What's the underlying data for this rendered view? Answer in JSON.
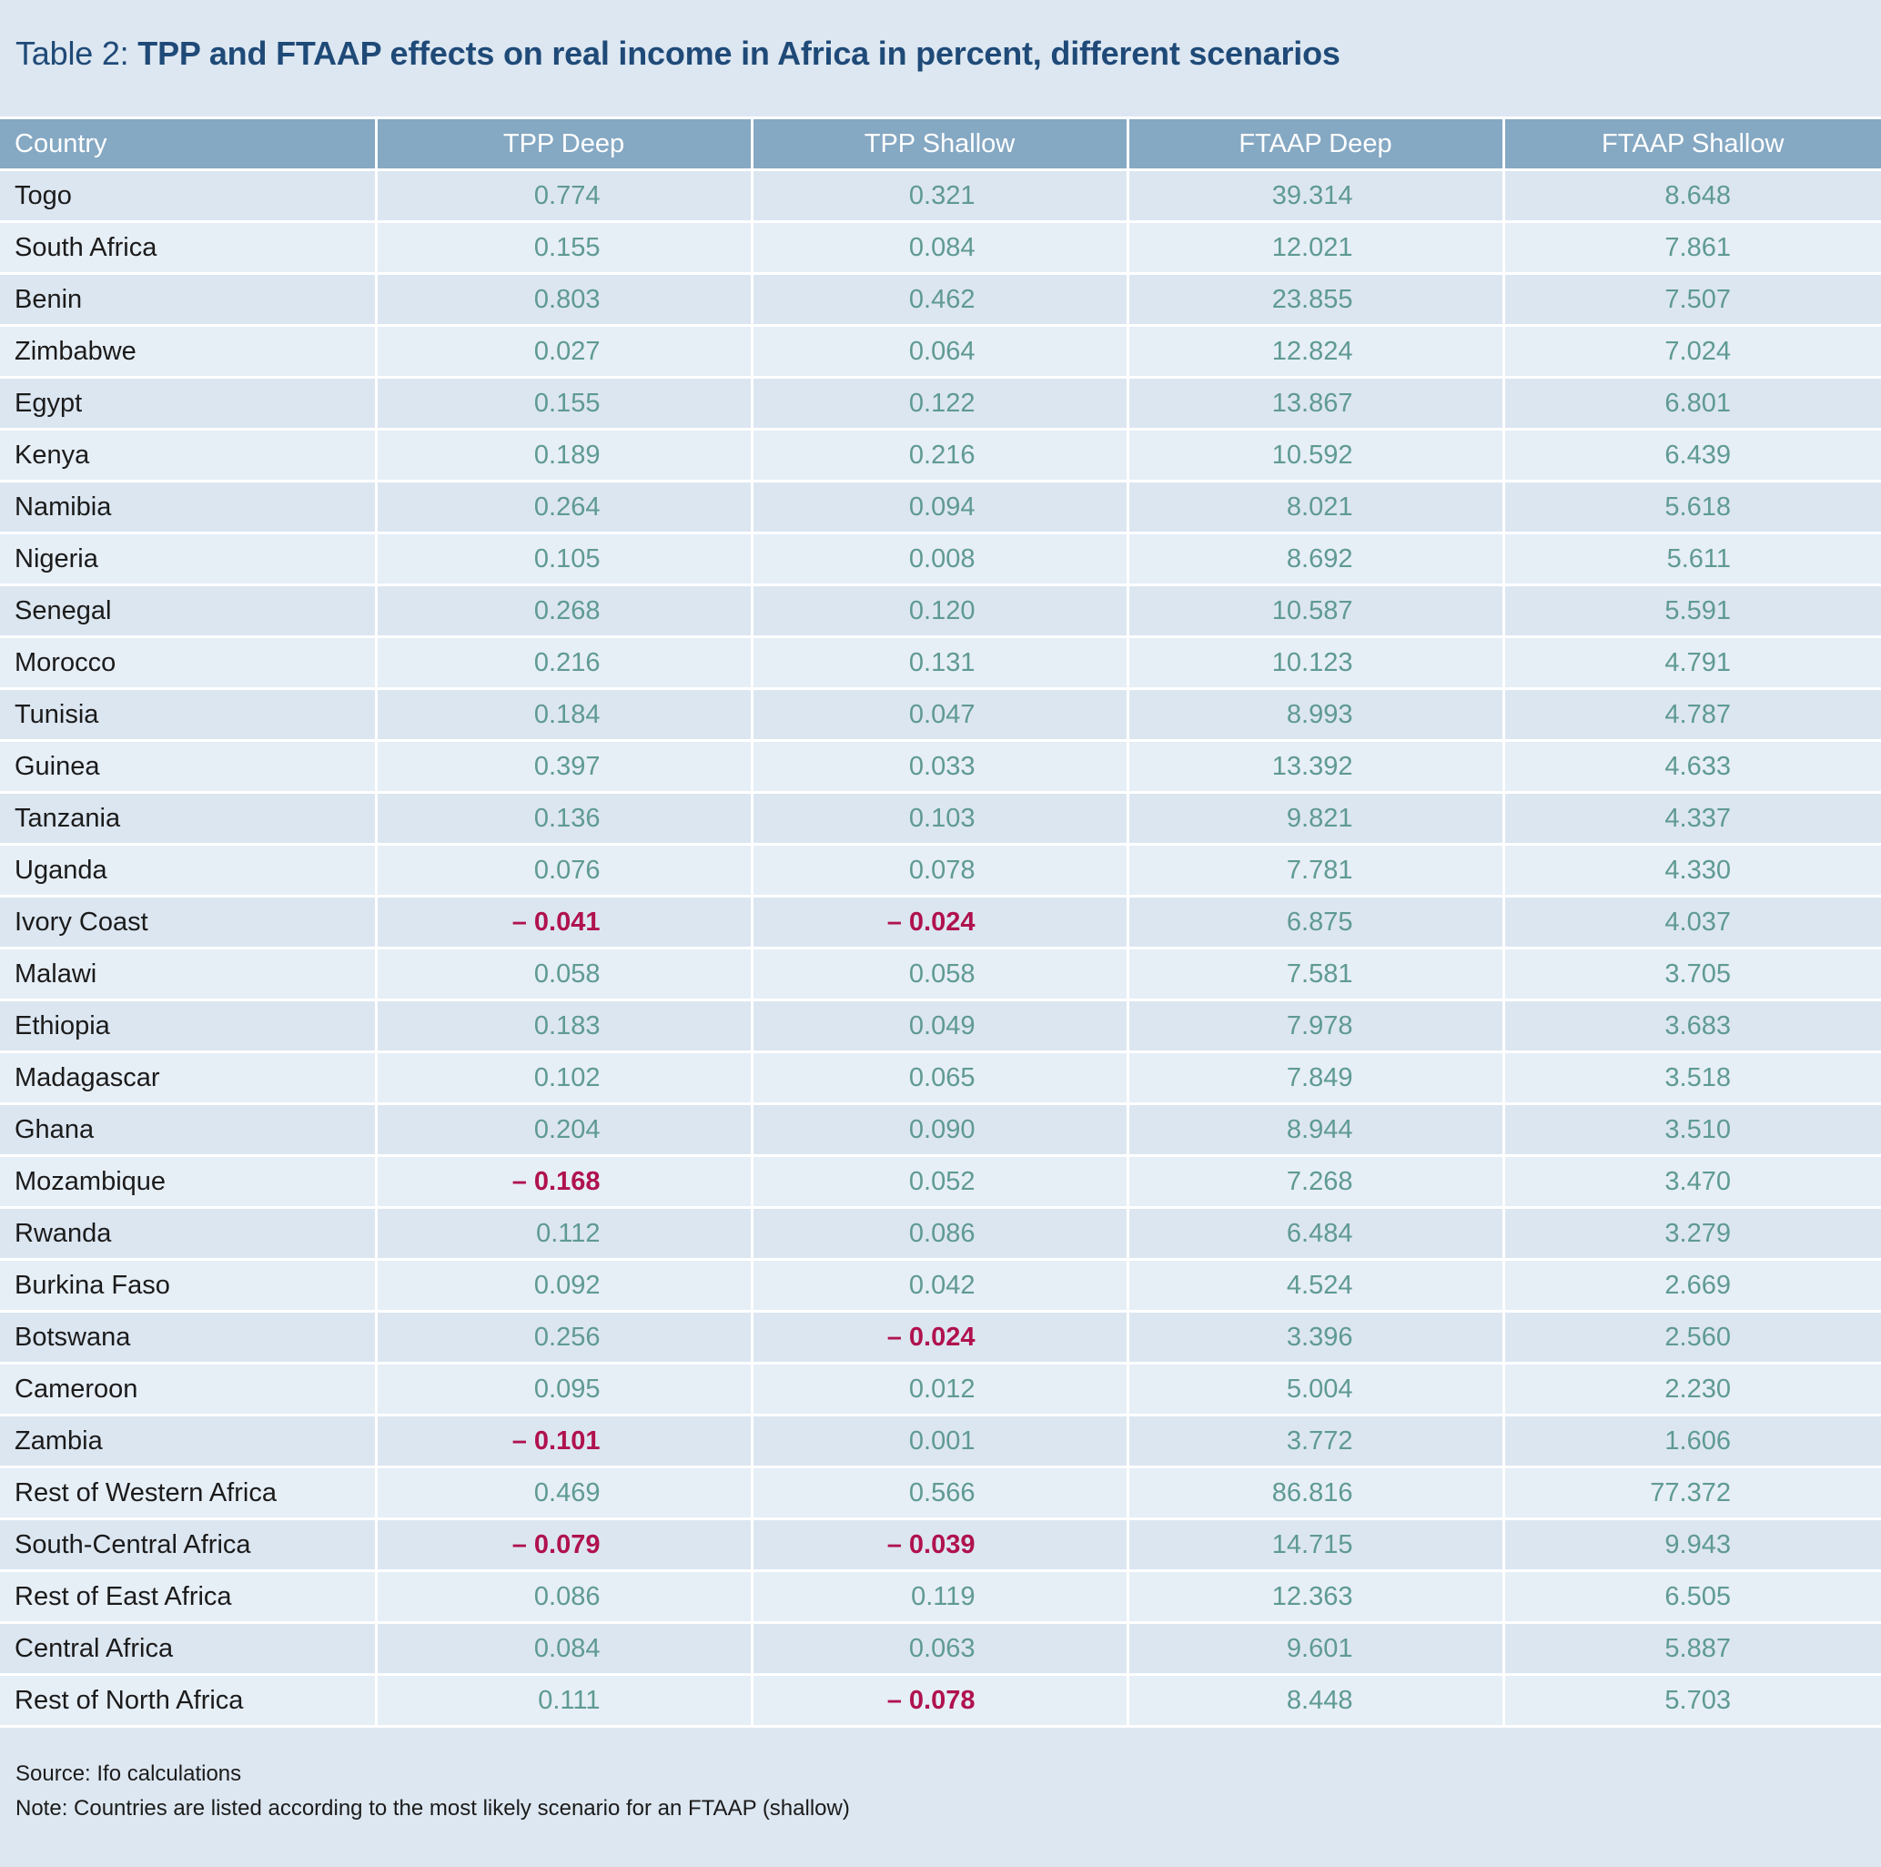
{
  "title": {
    "prefix": "Table 2: ",
    "main": "TPP and FTAAP effects on real income in Africa in percent, different scenarios"
  },
  "table": {
    "columns": [
      "Country",
      "TPP Deep",
      "TPP Shallow",
      "FTAAP Deep",
      "FTAAP Shallow"
    ],
    "rows": [
      {
        "country": "Togo",
        "values": [
          "0.774",
          "0.321",
          "39.314",
          "8.648"
        ]
      },
      {
        "country": "South Africa",
        "values": [
          "0.155",
          "0.084",
          "12.021",
          "7.861"
        ]
      },
      {
        "country": "Benin",
        "values": [
          "0.803",
          "0.462",
          "23.855",
          "7.507"
        ]
      },
      {
        "country": "Zimbabwe",
        "values": [
          "0.027",
          "0.064",
          "12.824",
          "7.024"
        ]
      },
      {
        "country": "Egypt",
        "values": [
          "0.155",
          "0.122",
          "13.867",
          "6.801"
        ]
      },
      {
        "country": "Kenya",
        "values": [
          "0.189",
          "0.216",
          "10.592",
          "6.439"
        ]
      },
      {
        "country": "Namibia",
        "values": [
          "0.264",
          "0.094",
          "8.021",
          "5.618"
        ]
      },
      {
        "country": "Nigeria",
        "values": [
          "0.105",
          "0.008",
          "8.692",
          "5.611"
        ]
      },
      {
        "country": "Senegal",
        "values": [
          "0.268",
          "0.120",
          "10.587",
          "5.591"
        ]
      },
      {
        "country": "Morocco",
        "values": [
          "0.216",
          "0.131",
          "10.123",
          "4.791"
        ]
      },
      {
        "country": "Tunisia",
        "values": [
          "0.184",
          "0.047",
          "8.993",
          "4.787"
        ]
      },
      {
        "country": "Guinea",
        "values": [
          "0.397",
          "0.033",
          "13.392",
          "4.633"
        ]
      },
      {
        "country": "Tanzania",
        "values": [
          "0.136",
          "0.103",
          "9.821",
          "4.337"
        ]
      },
      {
        "country": "Uganda",
        "values": [
          "0.076",
          "0.078",
          "7.781",
          "4.330"
        ]
      },
      {
        "country": "Ivory Coast",
        "values": [
          "– 0.041",
          "– 0.024",
          "6.875",
          "4.037"
        ]
      },
      {
        "country": "Malawi",
        "values": [
          "0.058",
          "0.058",
          "7.581",
          "3.705"
        ]
      },
      {
        "country": "Ethiopia",
        "values": [
          "0.183",
          "0.049",
          "7.978",
          "3.683"
        ]
      },
      {
        "country": "Madagascar",
        "values": [
          "0.102",
          "0.065",
          "7.849",
          "3.518"
        ]
      },
      {
        "country": "Ghana",
        "values": [
          "0.204",
          "0.090",
          "8.944",
          "3.510"
        ]
      },
      {
        "country": "Mozambique",
        "values": [
          "– 0.168",
          "0.052",
          "7.268",
          "3.470"
        ]
      },
      {
        "country": "Rwanda",
        "values": [
          "0.112",
          "0.086",
          "6.484",
          "3.279"
        ]
      },
      {
        "country": "Burkina Faso",
        "values": [
          "0.092",
          "0.042",
          "4.524",
          "2.669"
        ]
      },
      {
        "country": "Botswana",
        "values": [
          "0.256",
          "– 0.024",
          "3.396",
          "2.560"
        ]
      },
      {
        "country": "Cameroon",
        "values": [
          "0.095",
          "0.012",
          "5.004",
          "2.230"
        ]
      },
      {
        "country": "Zambia",
        "values": [
          "– 0.101",
          "0.001",
          "3.772",
          "1.606"
        ]
      },
      {
        "country": "Rest of Western Africa",
        "values": [
          "0.469",
          "0.566",
          "86.816",
          "77.372"
        ]
      },
      {
        "country": "South-Central Africa",
        "values": [
          "– 0.079",
          "– 0.039",
          "14.715",
          "9.943"
        ]
      },
      {
        "country": "Rest of East Africa",
        "values": [
          "0.086",
          "0.119",
          "12.363",
          "6.505"
        ]
      },
      {
        "country": "Central Africa",
        "values": [
          "0.084",
          "0.063",
          "9.601",
          "5.887"
        ]
      },
      {
        "country": "Rest of North Africa",
        "values": [
          "0.111",
          "– 0.078",
          "8.448",
          "5.703"
        ]
      }
    ]
  },
  "footer": {
    "source": "Source: Ifo calculations",
    "note": "Note: Countries are listed according to the most likely scenario for an FTAAP (shallow)"
  },
  "colors": {
    "background": "#dde7f1",
    "header_bg": "#85a8c3",
    "title": "#1f4a78",
    "positive_value": "#5f9a93",
    "negative_value": "#b0124e"
  }
}
